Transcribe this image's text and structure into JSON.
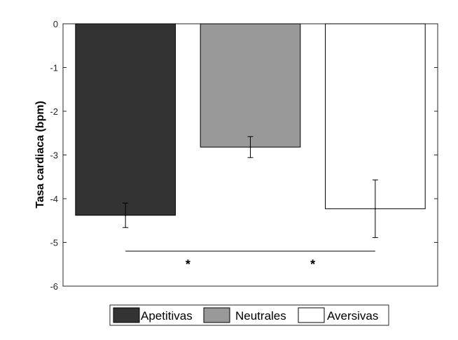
{
  "chart_data": {
    "type": "bar",
    "title": "",
    "xlabel": "",
    "ylabel": "Tasa cardiaca (bpm)",
    "ylim": [
      -6,
      0
    ],
    "yticks": [
      0,
      -1,
      -2,
      -3,
      -4,
      -5,
      -6
    ],
    "yticklabels": [
      "0",
      "-1",
      "-2",
      "-3",
      "-4",
      "-5",
      "-6"
    ],
    "grid": false,
    "legend_position": "bottom",
    "series": [
      {
        "name": "Apetitivas",
        "value": -4.38,
        "error_low": -4.66,
        "error_high": -4.1,
        "color": "#333333"
      },
      {
        "name": "Neutrales",
        "value": -2.82,
        "error_low": -3.06,
        "error_high": -2.58,
        "color": "#999999"
      },
      {
        "name": "Aversivas",
        "value": -4.23,
        "error_low": -4.89,
        "error_high": -3.57,
        "color": "#ffffff"
      }
    ],
    "annotations": [
      {
        "text": "*",
        "from": "Apetitivas",
        "to": "Neutrales",
        "y": -5.2
      },
      {
        "text": "*",
        "from": "Neutrales",
        "to": "Aversivas",
        "y": -5.2
      }
    ]
  }
}
